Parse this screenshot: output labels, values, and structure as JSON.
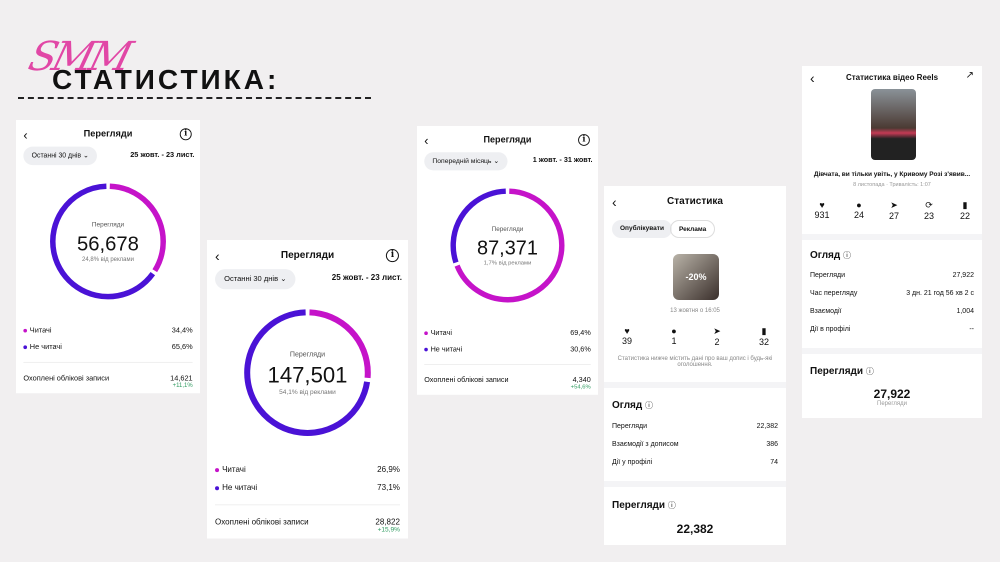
{
  "slide": {
    "logo_script": "SMM",
    "title": "СТАТИСТИКА:"
  },
  "views_panels": [
    {
      "title": "Перегляди",
      "filter": "Останні 30 днів",
      "date_range": "25 жовт. - 23 лист.",
      "center_label": "Перегляди",
      "total": "56,678",
      "ads_share": "24,8% від реклами",
      "followers_label": "Читачі",
      "followers_pct": "34,4%",
      "followers_fraction": 0.344,
      "nonfollowers_label": "Не читачі",
      "nonfollowers_pct": "65,6%",
      "reach_label": "Охоплені облікові записи",
      "reach": "14,621",
      "reach_change": "+11,1%"
    },
    {
      "title": "Перегляди",
      "filter": "Останні 30 днів",
      "date_range": "25 жовт. - 23 лист.",
      "center_label": "Перегляди",
      "total": "147,501",
      "ads_share": "54,1% від реклами",
      "followers_label": "Читачі",
      "followers_pct": "26,9%",
      "followers_fraction": 0.269,
      "nonfollowers_label": "Не читачі",
      "nonfollowers_pct": "73,1%",
      "reach_label": "Охоплені облікові записи",
      "reach": "28,822",
      "reach_change": "+15,9%"
    },
    {
      "title": "Перегляди",
      "filter": "Попередній місяць",
      "date_range": "1 жовт. - 31 жовт.",
      "center_label": "Перегляди",
      "total": "87,371",
      "ads_share": "1,7% від реклами",
      "followers_label": "Читачі",
      "followers_pct": "69,4%",
      "followers_fraction": 0.694,
      "nonfollowers_label": "Не читачі",
      "nonfollowers_pct": "30,6%",
      "reach_label": "Охоплені облікові записи",
      "reach": "4,340",
      "reach_change": "+54,6%"
    }
  ],
  "colors": {
    "followers": "#c513c9",
    "nonfollowers": "#4a12d6",
    "positive": "#2e9a5f"
  },
  "post_panel": {
    "title": "Статистика",
    "tabs": [
      "Опублікувати",
      "Реклама"
    ],
    "thumb_text": "-20%",
    "date": "13 жовтня о 16:05",
    "stats": [
      {
        "icon": "heart-icon",
        "glyph": "♥",
        "value": "39"
      },
      {
        "icon": "comment-icon",
        "glyph": "●",
        "value": "1"
      },
      {
        "icon": "share-icon",
        "glyph": "➤",
        "value": "2"
      },
      {
        "icon": "bookmark-icon",
        "glyph": "▮",
        "value": "32"
      }
    ],
    "note": "Статистика нижче містить дані про ваш допис і будь-які оголошення.",
    "overview_title": "Огляд",
    "overview": [
      {
        "label": "Перегляди",
        "value": "22,382"
      },
      {
        "label": "Взаємодії з дописом",
        "value": "386"
      },
      {
        "label": "Дії у профілі",
        "value": "74"
      }
    ],
    "views_title": "Перегляди",
    "views_total": "22,382"
  },
  "reels_panel": {
    "title": "Статистика відео Reels",
    "caption": "Дівчата, ви тільки увіть, у  Кривому Розі з'явив...",
    "meta": "8 листопада · Тривалість: 1:07",
    "stats": [
      {
        "icon": "heart-icon",
        "glyph": "♥",
        "value": "931"
      },
      {
        "icon": "comment-icon",
        "glyph": "●",
        "value": "24"
      },
      {
        "icon": "share-icon",
        "glyph": "➤",
        "value": "27"
      },
      {
        "icon": "repost-icon",
        "glyph": "⟳",
        "value": "23"
      },
      {
        "icon": "bookmark-icon",
        "glyph": "▮",
        "value": "22"
      }
    ],
    "overview_title": "Огляд",
    "overview": [
      {
        "label": "Перегляди",
        "value": "27,922"
      },
      {
        "label": "Час перегляду",
        "value": "3 дн. 21 год 56 хв 2 с"
      },
      {
        "label": "Взаємодії",
        "value": "1,004"
      },
      {
        "label": "Дії в профілі",
        "value": "--"
      }
    ],
    "views_title": "Перегляди",
    "views_total": "27,922",
    "views_sub": "Перегляди"
  }
}
